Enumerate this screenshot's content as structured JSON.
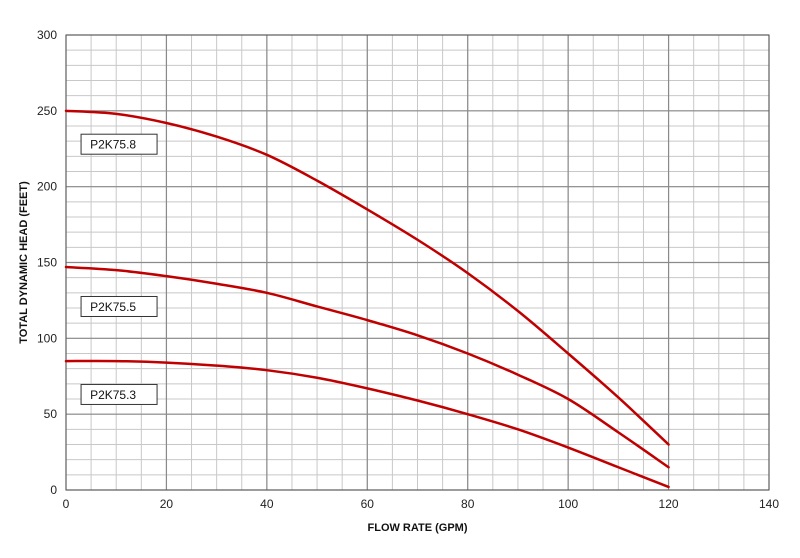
{
  "chart_data": {
    "type": "line",
    "xlabel": "FLOW RATE (GPM)",
    "ylabel": "TOTAL DYNAMIC HEAD (FEET)",
    "xlim": [
      0,
      140
    ],
    "ylim": [
      0,
      300
    ],
    "x_ticks": [
      0,
      20,
      40,
      60,
      80,
      100,
      120,
      140
    ],
    "y_ticks": [
      0,
      50,
      100,
      150,
      200,
      250,
      300
    ],
    "x_minor_step": 5,
    "y_minor_step": 10,
    "grid": true,
    "line_color": "#c00000",
    "series": [
      {
        "name": "P2K75.8",
        "label_box": {
          "x": 3,
          "y": 228
        },
        "x": [
          0,
          10,
          20,
          30,
          40,
          50,
          60,
          70,
          80,
          90,
          100,
          110,
          120
        ],
        "y": [
          250,
          248,
          242,
          233,
          221,
          204,
          185,
          165,
          143,
          118,
          90,
          61,
          30
        ]
      },
      {
        "name": "P2K75.5",
        "label_box": {
          "x": 3,
          "y": 121
        },
        "x": [
          0,
          10,
          20,
          30,
          40,
          50,
          60,
          70,
          80,
          90,
          100,
          110,
          120
        ],
        "y": [
          147,
          145,
          141,
          136,
          130,
          121,
          112,
          102,
          90,
          76,
          60,
          38,
          15
        ]
      },
      {
        "name": "P2K75.3",
        "label_box": {
          "x": 3,
          "y": 63
        },
        "x": [
          0,
          10,
          20,
          30,
          40,
          50,
          60,
          70,
          80,
          90,
          100,
          110,
          120
        ],
        "y": [
          85,
          85,
          84,
          82,
          79,
          74,
          67,
          59,
          50,
          40,
          28,
          15,
          2
        ]
      }
    ]
  }
}
